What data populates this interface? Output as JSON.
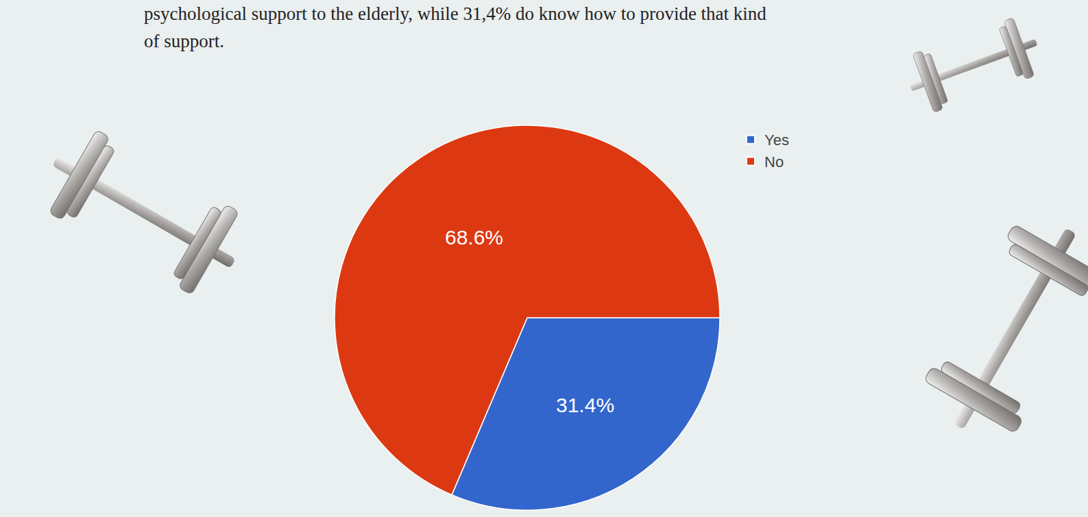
{
  "chart_data": {
    "type": "pie",
    "caption_lines": [
      "psychological support to the elderly, while 31,4% do know how to provide that kind",
      "of support."
    ],
    "categories": [
      "Yes",
      "No"
    ],
    "values": [
      31.4,
      68.6
    ],
    "value_labels": [
      "31.4%",
      "68.6%"
    ],
    "colors": [
      "#3366cc",
      "#dc3912"
    ],
    "data_labels": true,
    "legend": "top-right"
  }
}
